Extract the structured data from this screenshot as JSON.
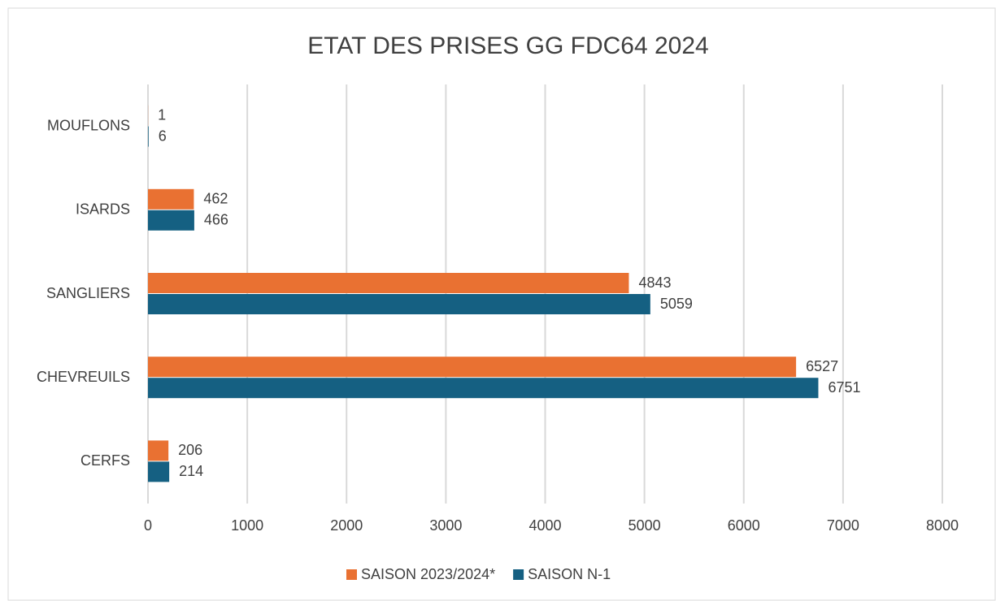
{
  "chart_data": {
    "type": "bar",
    "orientation": "horizontal",
    "title": "ETAT DES PRISES GG FDC64 2024",
    "categories": [
      "MOUFLONS",
      "ISARDS",
      "SANGLIERS",
      "CHEVREUILS",
      "CERFS"
    ],
    "series": [
      {
        "name": "SAISON 2023/2024*",
        "color": "#e97132",
        "values": [
          1,
          462,
          4843,
          6527,
          206
        ]
      },
      {
        "name": "SAISON N-1",
        "color": "#156082",
        "values": [
          6,
          466,
          5059,
          6751,
          214
        ]
      }
    ],
    "xlim": [
      0,
      8000
    ],
    "xticks": [
      0,
      1000,
      2000,
      3000,
      4000,
      5000,
      6000,
      7000,
      8000
    ],
    "grid": true,
    "legend": "bottom"
  }
}
